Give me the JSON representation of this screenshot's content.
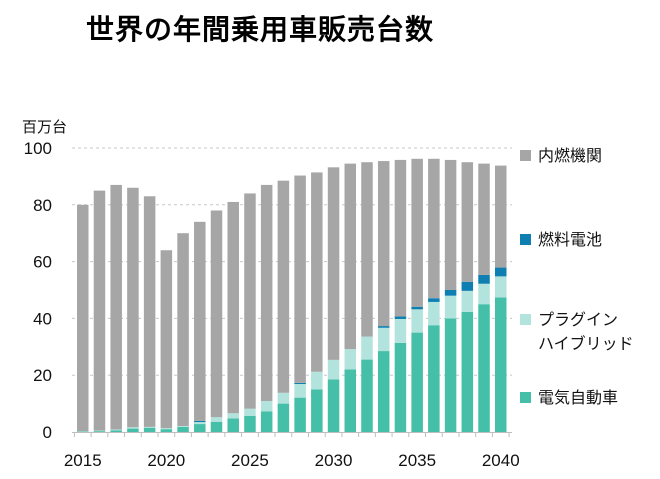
{
  "title": "世界の年間乗用車販売台数",
  "unit_label": "百万台",
  "colors": {
    "ice": "#a6a6a6",
    "fuel_cell": "#0e7fb0",
    "phev": "#b2e3dc",
    "bev": "#45bfa8",
    "grid": "#c8c8c8"
  },
  "legend": [
    {
      "key": "ice",
      "label": "内燃機関"
    },
    {
      "key": "fuel_cell",
      "label": "燃料電池"
    },
    {
      "key": "phev",
      "label_line1": "プラグイン",
      "label_line2": "ハイブリッド"
    },
    {
      "key": "bev",
      "label": "電気自動車"
    }
  ],
  "chart_data": {
    "type": "bar",
    "stacked": true,
    "title": "世界の年間乗用車販売台数",
    "ylabel": "百万台",
    "xlabel": "",
    "ylim": [
      0,
      100
    ],
    "yticks": [
      0,
      20,
      40,
      60,
      80,
      100
    ],
    "xtick_labels": [
      "2015",
      "2020",
      "2025",
      "2030",
      "2035",
      "2040"
    ],
    "grid": "horizontal dashed",
    "legend_position": "right",
    "categories": [
      "2015",
      "2016",
      "2017",
      "2018",
      "2019",
      "2020",
      "2021",
      "2022",
      "2023",
      "2024",
      "2025",
      "2026",
      "2027",
      "2028",
      "2029",
      "2030",
      "2031",
      "2032",
      "2033",
      "2034",
      "2035",
      "2036",
      "2037",
      "2038",
      "2039",
      "2040"
    ],
    "series": [
      {
        "name": "電気自動車",
        "key": "bev",
        "values": [
          0.2,
          0.3,
          0.6,
          1.2,
          1.5,
          1.0,
          1.8,
          2.8,
          3.6,
          4.8,
          5.7,
          7.3,
          10.0,
          12.1,
          15.0,
          18.5,
          22.0,
          25.5,
          28.5,
          31.4,
          35.0,
          37.6,
          40.0,
          42.3,
          45.0,
          47.4
        ]
      },
      {
        "name": "プラグインハイブリッド",
        "key": "phev",
        "values": [
          0.1,
          0.2,
          0.3,
          0.5,
          0.3,
          0.4,
          0.3,
          0.7,
          1.6,
          1.8,
          2.5,
          3.6,
          3.8,
          4.8,
          6.2,
          6.9,
          7.2,
          8.1,
          8.2,
          8.4,
          8.2,
          8.2,
          8.0,
          7.4,
          7.2,
          7.4
        ]
      },
      {
        "name": "燃料電池",
        "key": "fuel_cell",
        "values": [
          0,
          0,
          0,
          0,
          0,
          0,
          0,
          0.4,
          0,
          0,
          0,
          0,
          0,
          0.4,
          0,
          0,
          0,
          0,
          0.6,
          0.9,
          0.9,
          1.3,
          2.0,
          3.2,
          3.1,
          3.1
        ]
      },
      {
        "name": "内燃機関",
        "key": "ice",
        "values": [
          79.7,
          84.5,
          86.1,
          84.3,
          81.2,
          62.6,
          67.9,
          70.1,
          72.8,
          74.4,
          75.8,
          76.1,
          74.7,
          73.0,
          70.2,
          67.8,
          65.3,
          61.4,
          58.1,
          55.1,
          52.1,
          49.1,
          45.8,
          42.1,
          39.2,
          35.9
        ]
      }
    ]
  }
}
